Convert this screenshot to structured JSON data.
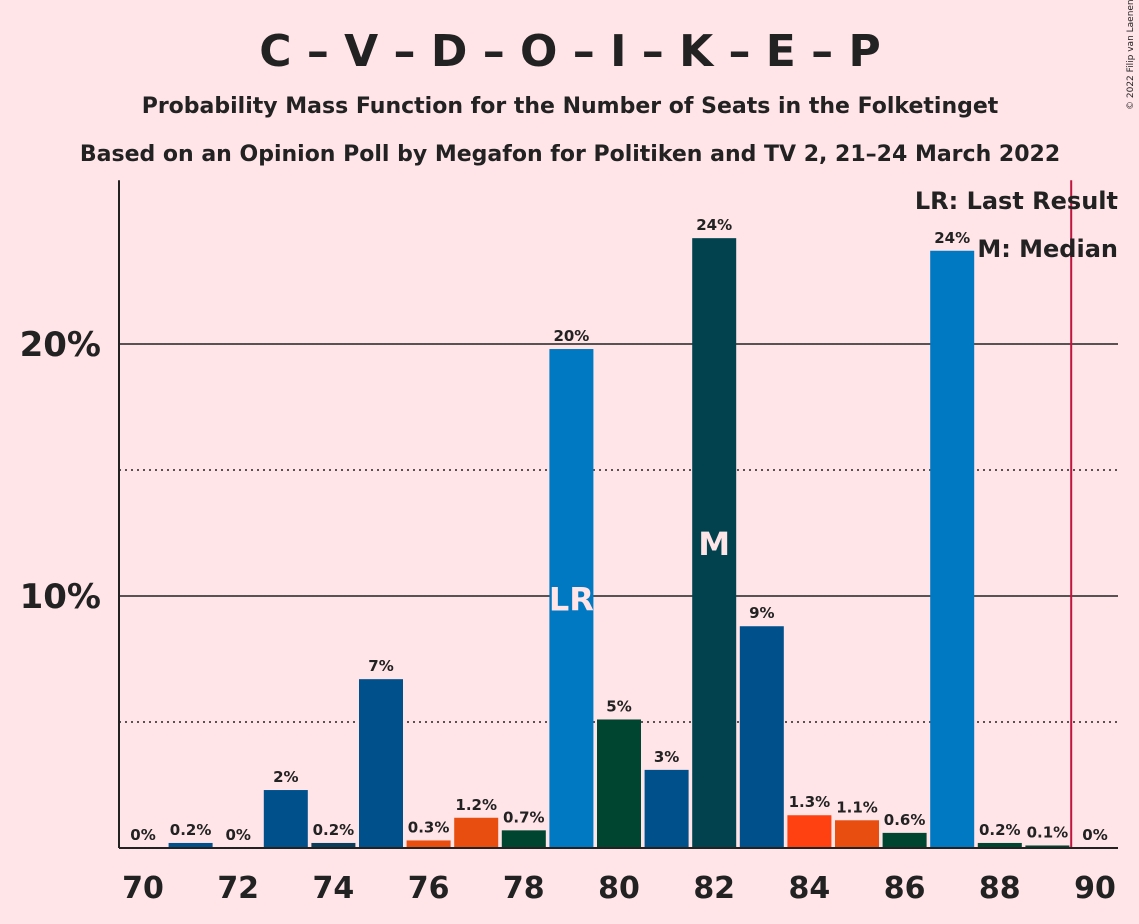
{
  "chart_data": {
    "type": "bar",
    "title": "C – V – D – O – I – K – E – P",
    "subtitle_line1": "Probability Mass Function for the Number of Seats in the Folketinget",
    "subtitle_line2": "Based on an Opinion Poll by Megafon for Politiken and TV 2, 21–24 March 2022",
    "copyright": "© 2022 Filip van Laenen",
    "legend": {
      "last_result": "LR: Last Result",
      "median": "M: Median"
    },
    "ylim": [
      0,
      26.5
    ],
    "y_ticks": [
      {
        "value": 10,
        "label": "10%"
      },
      {
        "value": 20,
        "label": "20%"
      }
    ],
    "y_dotted": [
      5,
      15
    ],
    "x_ticks": [
      70,
      72,
      74,
      76,
      78,
      80,
      82,
      84,
      86,
      88,
      90
    ],
    "majority_line": 89.5,
    "bars": [
      {
        "seats": 70,
        "value": 0,
        "label": "0%",
        "color": "#1A4A8A"
      },
      {
        "seats": 71,
        "value": 0.2,
        "label": "0.2%",
        "color": "#00508C"
      },
      {
        "seats": 72,
        "value": 0,
        "label": "0%",
        "color": "#00508C"
      },
      {
        "seats": 73,
        "value": 2.3,
        "label": "2%",
        "color": "#00508C"
      },
      {
        "seats": 74,
        "value": 0.2,
        "label": "0.2%",
        "color": "#0B3D5C"
      },
      {
        "seats": 75,
        "value": 6.7,
        "label": "7%",
        "color": "#00508C"
      },
      {
        "seats": 76,
        "value": 0.3,
        "label": "0.3%",
        "color": "#E84E10"
      },
      {
        "seats": 77,
        "value": 1.2,
        "label": "1.2%",
        "color": "#E84E10"
      },
      {
        "seats": 78,
        "value": 0.7,
        "label": "0.7%",
        "color": "#004530"
      },
      {
        "seats": 79,
        "value": 19.8,
        "label": "20%",
        "color": "#0078C2",
        "mark": "LR"
      },
      {
        "seats": 80,
        "value": 5.1,
        "label": "5%",
        "color": "#004530"
      },
      {
        "seats": 81,
        "value": 3.1,
        "label": "3%",
        "color": "#00508C"
      },
      {
        "seats": 82,
        "value": 24.2,
        "label": "24%",
        "color": "#02424F",
        "mark": "M"
      },
      {
        "seats": 83,
        "value": 8.8,
        "label": "9%",
        "color": "#00508C"
      },
      {
        "seats": 84,
        "value": 1.3,
        "label": "1.3%",
        "color": "#FF4010"
      },
      {
        "seats": 85,
        "value": 1.1,
        "label": "1.1%",
        "color": "#E84E10"
      },
      {
        "seats": 86,
        "value": 0.6,
        "label": "0.6%",
        "color": "#004530"
      },
      {
        "seats": 87,
        "value": 23.7,
        "label": "24%",
        "color": "#0078C2"
      },
      {
        "seats": 88,
        "value": 0.2,
        "label": "0.2%",
        "color": "#004530"
      },
      {
        "seats": 89,
        "value": 0.1,
        "label": "0.1%",
        "color": "#004530"
      },
      {
        "seats": 90,
        "value": 0,
        "label": "0%",
        "color": "#004530"
      }
    ]
  }
}
